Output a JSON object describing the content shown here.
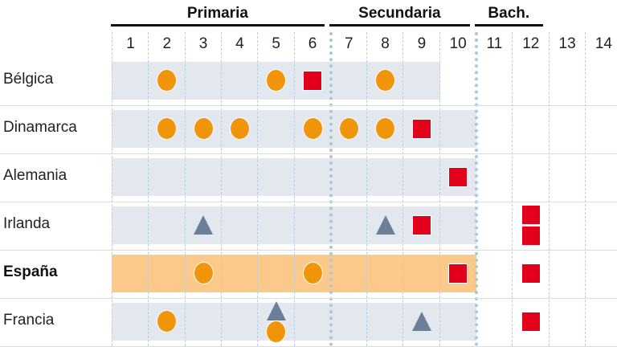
{
  "groups": [
    {
      "label": "Primaria",
      "from": 1,
      "to": 6
    },
    {
      "label": "Secundaria",
      "from": 7,
      "to": 10
    },
    {
      "label": "Bach.",
      "from": 11,
      "to": 12
    }
  ],
  "columns": [
    "1",
    "2",
    "3",
    "4",
    "5",
    "6",
    "7",
    "8",
    "9",
    "10",
    "11",
    "12",
    "13",
    "14"
  ],
  "colors": {
    "band": "#e3e8ee",
    "highlight_band": "#fbc98a",
    "circle": "#f0940a",
    "square": "#e2001a",
    "triangle": "#6b7f99"
  },
  "rows": [
    {
      "country": "Bélgica",
      "bold": false,
      "band_to": 9,
      "markers": [
        {
          "col": 2,
          "shapes": [
            "circle"
          ]
        },
        {
          "col": 5,
          "shapes": [
            "circle"
          ]
        },
        {
          "col": 6,
          "shapes": [
            "square"
          ]
        },
        {
          "col": 8,
          "shapes": [
            "circle"
          ]
        }
      ]
    },
    {
      "country": "Dinamarca",
      "bold": false,
      "band_to": 10,
      "markers": [
        {
          "col": 2,
          "shapes": [
            "circle"
          ]
        },
        {
          "col": 3,
          "shapes": [
            "circle"
          ]
        },
        {
          "col": 4,
          "shapes": [
            "circle"
          ]
        },
        {
          "col": 6,
          "shapes": [
            "circle"
          ]
        },
        {
          "col": 7,
          "shapes": [
            "circle"
          ]
        },
        {
          "col": 8,
          "shapes": [
            "circle"
          ]
        },
        {
          "col": 9,
          "shapes": [
            "square"
          ]
        }
      ]
    },
    {
      "country": "Alemania",
      "bold": false,
      "band_to": 10,
      "markers": [
        {
          "col": 10,
          "shapes": [
            "square"
          ]
        }
      ]
    },
    {
      "country": "Irlanda",
      "bold": false,
      "band_to": 10,
      "markers": [
        {
          "col": 3,
          "shapes": [
            "triangle"
          ]
        },
        {
          "col": 8,
          "shapes": [
            "triangle"
          ]
        },
        {
          "col": 9,
          "shapes": [
            "square"
          ]
        },
        {
          "col": 12,
          "shapes": [
            "square",
            "square"
          ]
        }
      ]
    },
    {
      "country": "España",
      "bold": true,
      "highlight": true,
      "band_to": 10,
      "markers": [
        {
          "col": 3,
          "shapes": [
            "circle"
          ]
        },
        {
          "col": 6,
          "shapes": [
            "circle"
          ]
        },
        {
          "col": 10,
          "shapes": [
            "square"
          ]
        },
        {
          "col": 12,
          "shapes": [
            "square"
          ]
        }
      ]
    },
    {
      "country": "Francia",
      "bold": false,
      "band_to": 10,
      "markers": [
        {
          "col": 2,
          "shapes": [
            "circle"
          ]
        },
        {
          "col": 5,
          "shapes": [
            "triangle",
            "circle"
          ]
        },
        {
          "col": 9,
          "shapes": [
            "triangle"
          ]
        },
        {
          "col": 12,
          "shapes": [
            "square"
          ]
        }
      ]
    }
  ]
}
